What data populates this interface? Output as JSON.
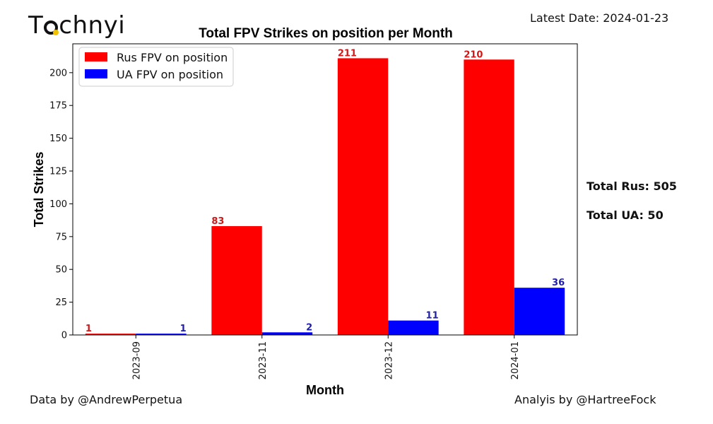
{
  "logo": {
    "text_pre": "T",
    "text_post": "chnyi"
  },
  "header": {
    "latest_date": "Latest Date: 2024-01-23"
  },
  "footer": {
    "data_credit": "Data by @AndrewPerpetua",
    "analysis_credit": "Analyis by @HartreeFock"
  },
  "totals": {
    "rus": "Total Rus: 505",
    "ua": "Total UA: 50"
  },
  "colors": {
    "rus": "#ff0000",
    "ua": "#0000ff",
    "rus_label": "#cc1a1a",
    "ua_label": "#1f1fa6"
  },
  "chart_data": {
    "type": "bar",
    "title": "Total FPV Strikes on position per Month",
    "xlabel": "Month",
    "ylabel": "Total Strikes",
    "categories": [
      "2023-09",
      "2023-11",
      "2023-12",
      "2024-01"
    ],
    "series": [
      {
        "name": "Rus FPV on position",
        "values": [
          1,
          83,
          211,
          210
        ]
      },
      {
        "name": "UA FPV on position",
        "values": [
          1,
          2,
          11,
          36
        ]
      }
    ],
    "ylim": [
      0,
      222
    ],
    "yticks": [
      0,
      25,
      50,
      75,
      100,
      125,
      150,
      175,
      200
    ],
    "legend": "top-left",
    "grid": false
  }
}
